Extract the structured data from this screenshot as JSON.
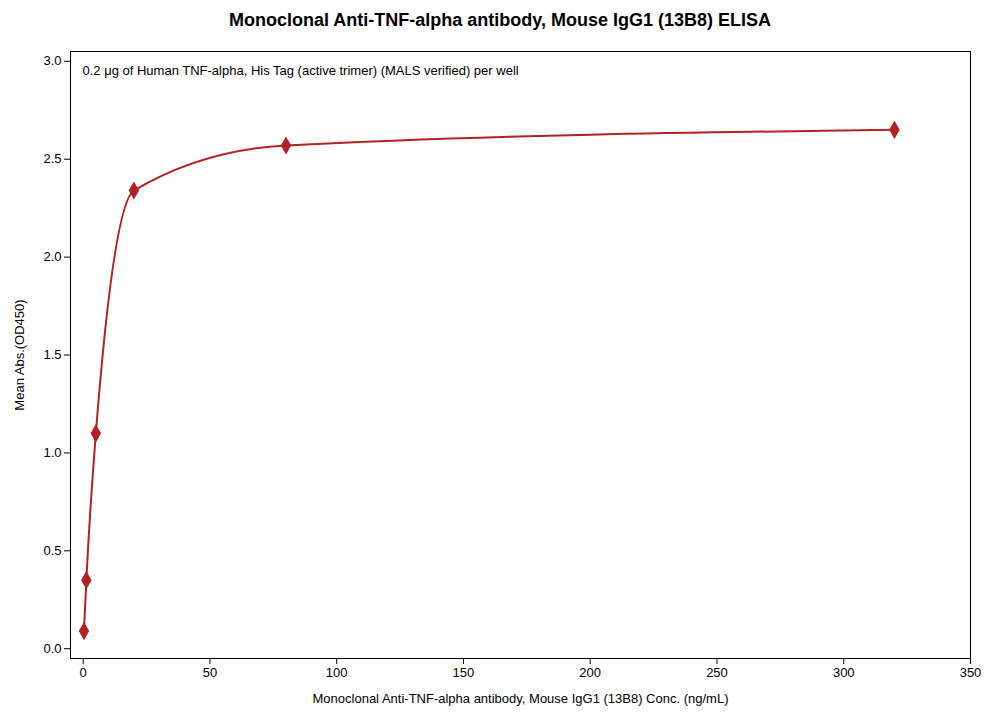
{
  "chart_data": {
    "type": "line",
    "title": "Monoclonal Anti-TNF-alpha antibody, Mouse IgG1 (13B8) ELISA",
    "subtitle": "0.2 μg of Human TNF-alpha, His Tag (active trimer) (MALS verified) per well",
    "xlabel": "Monoclonal Anti-TNF-alpha antibody, Mouse IgG1 (13B8) Conc. (ng/mL)",
    "ylabel": "Mean Abs.(OD450)",
    "x": [
      0.3125,
      1.25,
      5,
      20,
      80,
      320
    ],
    "values": [
      0.09,
      0.35,
      1.1,
      2.34,
      2.57,
      2.65
    ],
    "color": "#b22222",
    "marker": "diamond",
    "xlim": [
      -5,
      350
    ],
    "ylim": [
      -0.05,
      3.05
    ],
    "xticks": [
      0,
      50,
      100,
      150,
      200,
      250,
      300,
      350
    ],
    "yticks": [
      {
        "value": 0,
        "label": "0.0"
      },
      0.5,
      {
        "value": 1,
        "label": "1.0"
      },
      1.5,
      {
        "value": 2,
        "label": "2.0"
      },
      2.5,
      {
        "value": 3,
        "label": "3.0"
      }
    ]
  }
}
